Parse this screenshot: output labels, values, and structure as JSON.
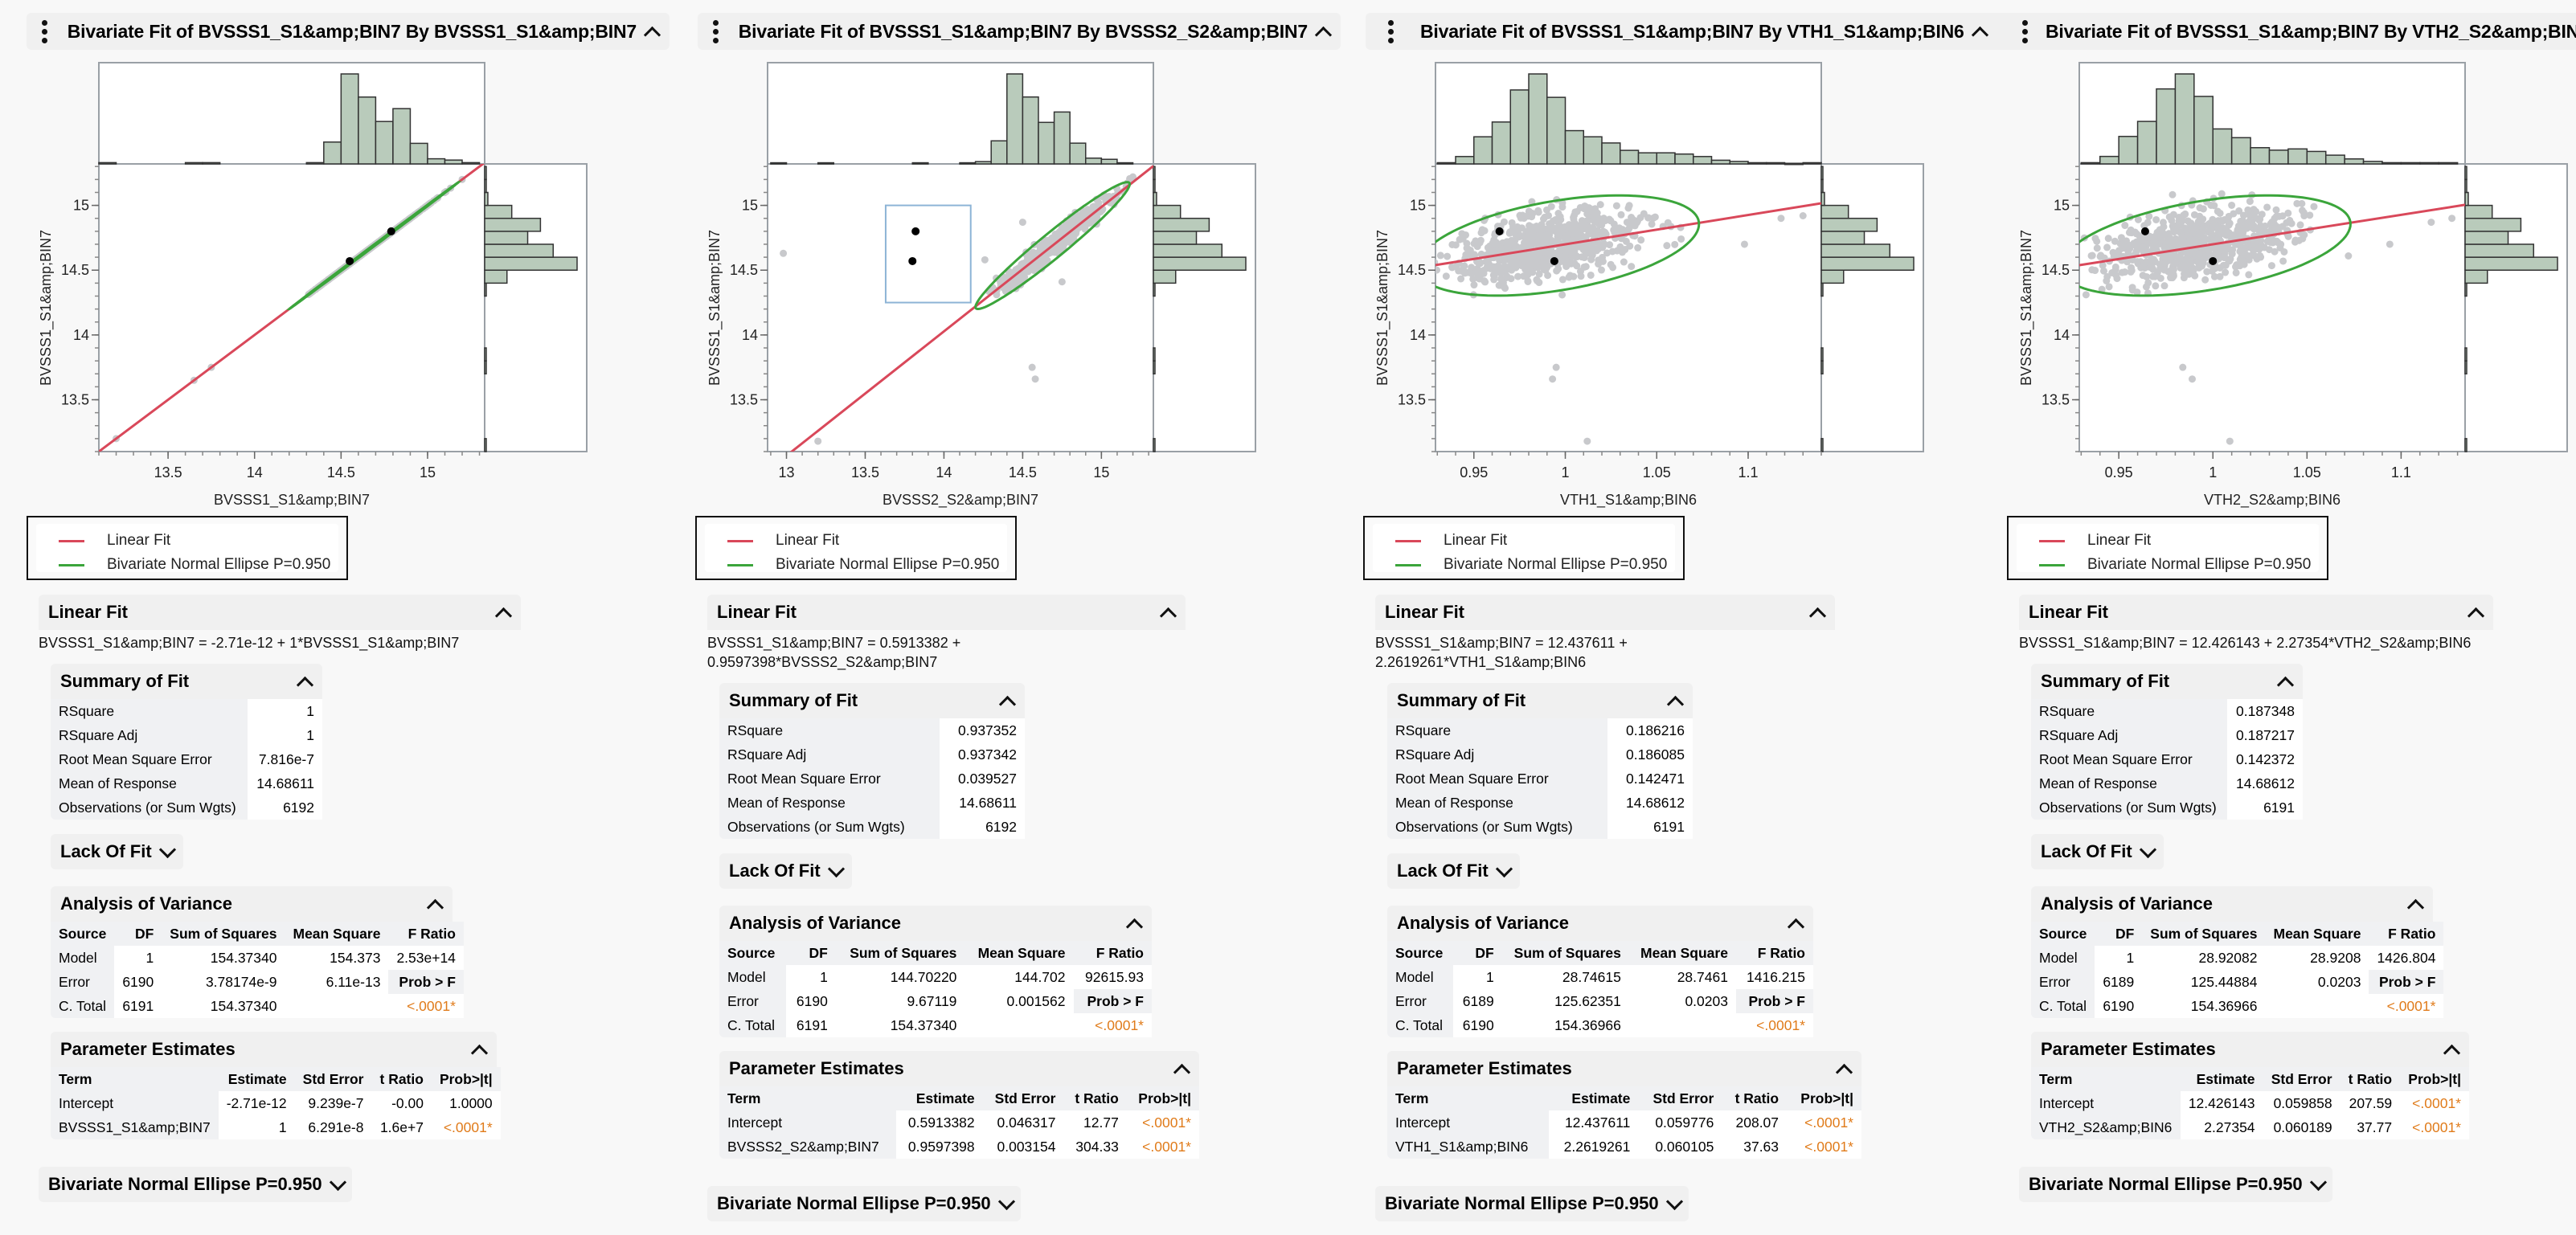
{
  "legend": {
    "items": [
      {
        "label": "Linear Fit",
        "color": "#d9485a"
      },
      {
        "label": "Bivariate Normal Ellipse P=0.950",
        "color": "#3ba53b"
      }
    ]
  },
  "colors": {
    "fit_line": "#d9485a",
    "ellipse": "#3ba53b",
    "points": "#c8c9cc",
    "selected_points": "#000000",
    "histogram_fill": "#b9cbbb",
    "histogram_stroke": "#333333",
    "significant": "#e07b1a"
  },
  "section_labels": {
    "linear_fit": "Linear Fit",
    "summary_of_fit": "Summary of Fit",
    "lack_of_fit": "Lack Of Fit",
    "anova": "Analysis of Variance",
    "parameter_estimates": "Parameter Estimates",
    "bivariate_ellipse": "Bivariate Normal Ellipse P=0.950"
  },
  "summary_labels": [
    "RSquare",
    "RSquare Adj",
    "Root Mean Square Error",
    "Mean of Response",
    "Observations (or Sum Wgts)"
  ],
  "anova_headers": [
    "Source",
    "DF",
    "Sum of Squares",
    "Mean Square",
    "F Ratio"
  ],
  "anova_sources": [
    "Model",
    "Error",
    "C. Total"
  ],
  "prob_f_label": "Prob > F",
  "param_headers": [
    "Term",
    "Estimate",
    "Std Error",
    "t Ratio",
    "Prob>|t|"
  ],
  "panels": [
    {
      "title": "Bivariate Fit of BVSSS1_S1&amp;BIN7 By BVSSS1_S1&amp;BIN7",
      "equation": [
        "BVSSS1_S1&amp;BIN7 = -2.71e-12 + 1*BVSSS1_S1&amp;BIN7"
      ],
      "summary": [
        "1",
        "1",
        "7.816e-7",
        "14.68611",
        "6192"
      ],
      "anova": {
        "df": [
          "1",
          "6190",
          "6191"
        ],
        "ss": [
          "154.37340",
          "3.78174e-9",
          "154.37340"
        ],
        "ms": [
          "154.373",
          "6.11e-13",
          ""
        ],
        "f_ratio": "2.53e+14",
        "prob_f": "<.0001*"
      },
      "params": [
        {
          "term": "Intercept",
          "estimate": "-2.71e-12",
          "std_error": "9.239e-7",
          "t_ratio": "-0.00",
          "prob": "1.0000",
          "sig": false
        },
        {
          "term": "BVSSS1_S1&amp;BIN7",
          "estimate": "1",
          "std_error": "6.291e-8",
          "t_ratio": "1.6e+7",
          "prob": "<.0001*",
          "sig": true
        }
      ]
    },
    {
      "title": "Bivariate Fit of BVSSS1_S1&amp;BIN7 By BVSSS2_S2&amp;BIN7",
      "equation": [
        "BVSSS1_S1&amp;BIN7 = 0.5913382 +",
        "0.9597398*BVSSS2_S2&amp;BIN7"
      ],
      "summary": [
        "0.937352",
        "0.937342",
        "0.039527",
        "14.68611",
        "6192"
      ],
      "anova": {
        "df": [
          "1",
          "6190",
          "6191"
        ],
        "ss": [
          "144.70220",
          "9.67119",
          "154.37340"
        ],
        "ms": [
          "144.702",
          "0.001562",
          ""
        ],
        "f_ratio": "92615.93",
        "prob_f": "<.0001*"
      },
      "params": [
        {
          "term": "Intercept",
          "estimate": "0.5913382",
          "std_error": "0.046317",
          "t_ratio": "12.77",
          "prob": "<.0001*",
          "sig": true
        },
        {
          "term": "BVSSS2_S2&amp;BIN7",
          "estimate": "0.9597398",
          "std_error": "0.003154",
          "t_ratio": "304.33",
          "prob": "<.0001*",
          "sig": true
        }
      ]
    },
    {
      "title": "Bivariate Fit of BVSSS1_S1&amp;BIN7 By VTH1_S1&amp;BIN6",
      "equation": [
        "BVSSS1_S1&amp;BIN7 = 12.437611 +",
        "2.2619261*VTH1_S1&amp;BIN6"
      ],
      "summary": [
        "0.186216",
        "0.186085",
        "0.142471",
        "14.68612",
        "6191"
      ],
      "anova": {
        "df": [
          "1",
          "6189",
          "6190"
        ],
        "ss": [
          "28.74615",
          "125.62351",
          "154.36966"
        ],
        "ms": [
          "28.7461",
          "0.0203",
          ""
        ],
        "f_ratio": "1416.215",
        "prob_f": "<.0001*"
      },
      "params": [
        {
          "term": "Intercept",
          "estimate": "12.437611",
          "std_error": "0.059776",
          "t_ratio": "208.07",
          "prob": "<.0001*",
          "sig": true
        },
        {
          "term": "VTH1_S1&amp;BIN6",
          "estimate": "2.2619261",
          "std_error": "0.060105",
          "t_ratio": "37.63",
          "prob": "<.0001*",
          "sig": true
        }
      ]
    },
    {
      "title": "Bivariate Fit of BVSSS1_S1&amp;BIN7 By VTH2_S2&amp;BIN6",
      "equation": [
        "BVSSS1_S1&amp;BIN7 = 12.426143 + 2.27354*VTH2_S2&amp;BIN6"
      ],
      "summary": [
        "0.187348",
        "0.187217",
        "0.142372",
        "14.68612",
        "6191"
      ],
      "anova": {
        "df": [
          "1",
          "6189",
          "6190"
        ],
        "ss": [
          "28.92082",
          "125.44884",
          "154.36966"
        ],
        "ms": [
          "28.9208",
          "0.0203",
          ""
        ],
        "f_ratio": "1426.804",
        "prob_f": "<.0001*"
      },
      "params": [
        {
          "term": "Intercept",
          "estimate": "12.426143",
          "std_error": "0.059858",
          "t_ratio": "207.59",
          "prob": "<.0001*",
          "sig": true
        },
        {
          "term": "VTH2_S2&amp;BIN6",
          "estimate": "2.27354",
          "std_error": "0.060189",
          "t_ratio": "37.77",
          "prob": "<.0001*",
          "sig": true
        }
      ]
    }
  ],
  "chart_data": [
    {
      "type": "scatter",
      "title": "Bivariate Fit of BVSSS1_S1&amp;BIN7 By BVSSS1_S1&amp;BIN7",
      "xlabel": "BVSSS1_S1&amp;BIN7",
      "ylabel": "BVSSS1_S1&amp;BIN7",
      "xlim": [
        13.1,
        15.33
      ],
      "ylim": [
        13.1,
        15.32
      ],
      "xticks": [
        13.5,
        14,
        14.5,
        15
      ],
      "yticks": [
        13.5,
        14,
        14.5,
        15
      ],
      "fit": {
        "intercept": 0,
        "slope": 1
      },
      "ellipse": {
        "cx": 14.69,
        "cy": 14.69,
        "sx": 0.2,
        "sy": 0.2,
        "rho": 0.9999
      },
      "cloud": {
        "cx": 14.69,
        "cy": 14.69,
        "sx": 0.18,
        "sy": 0.18,
        "rho": 1.0,
        "n": 500
      },
      "outliers": [
        [
          13.2,
          13.2
        ],
        [
          13.65,
          13.65
        ],
        [
          13.75,
          13.75
        ],
        [
          15.2,
          15.2
        ]
      ],
      "selected_points": [
        [
          14.55,
          14.57
        ],
        [
          14.79,
          14.8
        ]
      ],
      "x_histogram": {
        "bin_start": 13.1,
        "bin_width": 0.1,
        "counts": [
          1,
          0,
          0,
          0,
          0,
          1,
          1,
          0,
          0,
          0,
          0,
          0,
          1,
          17,
          70,
          52,
          33,
          43,
          16,
          4,
          3,
          1
        ]
      },
      "y_histogram": {
        "bin_start": 13.1,
        "bin_width": 0.1,
        "counts": [
          1,
          0,
          0,
          0,
          0,
          0,
          1,
          1,
          0,
          0,
          0,
          0,
          1,
          14,
          58,
          43,
          27,
          35,
          17,
          2,
          1,
          0.5
        ]
      }
    },
    {
      "type": "scatter",
      "title": "Bivariate Fit of BVSSS1_S1&amp;BIN7 By BVSSS2_S2&amp;BIN7",
      "xlabel": "BVSSS2_S2&amp;BIN7",
      "ylabel": "BVSSS1_S1&amp;BIN7",
      "xlim": [
        12.88,
        15.33
      ],
      "ylim": [
        13.1,
        15.32
      ],
      "xticks": [
        13,
        13.5,
        14,
        14.5,
        15
      ],
      "yticks": [
        13.5,
        14,
        14.5,
        15
      ],
      "fit": {
        "intercept": 0.5913382,
        "slope": 0.9597398
      },
      "ellipse": {
        "cx": 14.69,
        "cy": 14.69,
        "sx": 0.2,
        "sy": 0.2,
        "rho": 0.968
      },
      "cloud": {
        "cx": 14.69,
        "cy": 14.69,
        "sx": 0.18,
        "sy": 0.18,
        "rho": 0.975,
        "n": 500
      },
      "outliers": [
        [
          12.98,
          14.63
        ],
        [
          13.2,
          13.18
        ],
        [
          14.26,
          14.58
        ],
        [
          14.5,
          14.87
        ],
        [
          14.56,
          13.75
        ],
        [
          14.58,
          13.66
        ],
        [
          14.75,
          14.41
        ],
        [
          15.2,
          15.22
        ]
      ],
      "selected_points": [
        [
          13.82,
          14.8
        ],
        [
          13.8,
          14.57
        ]
      ],
      "selection_box": {
        "x": [
          13.63,
          14.17
        ],
        "y": [
          14.25,
          15.0
        ]
      },
      "x_histogram": {
        "bin_start": 12.9,
        "bin_width": 0.1,
        "counts": [
          1,
          0,
          0,
          1,
          0,
          0,
          0,
          0,
          0,
          1,
          0,
          0,
          1,
          2,
          20,
          78,
          58,
          36,
          45,
          18,
          5,
          4,
          1
        ]
      },
      "y_histogram": {
        "bin_start": 13.1,
        "bin_width": 0.1,
        "counts": [
          1,
          0,
          0,
          0,
          0,
          0,
          1,
          1,
          0,
          0,
          0,
          0,
          1,
          14,
          58,
          43,
          27,
          35,
          17,
          2,
          1,
          0.5
        ]
      }
    },
    {
      "type": "scatter",
      "title": "Bivariate Fit of BVSSS1_S1&amp;BIN7 By VTH1_S1&amp;BIN6",
      "xlabel": "VTH1_S1&amp;BIN6",
      "ylabel": "BVSSS1_S1&amp;BIN7",
      "xlim": [
        0.929,
        1.14
      ],
      "ylim": [
        13.1,
        15.32
      ],
      "xticks": [
        0.95,
        1,
        1.05,
        1.1
      ],
      "yticks": [
        13.5,
        14,
        14.5,
        15
      ],
      "fit": {
        "intercept": 12.437611,
        "slope": 2.2619261
      },
      "ellipse": {
        "cx": 0.996,
        "cy": 14.69,
        "sx": 0.0315,
        "sy": 0.158,
        "rho": 0.43
      },
      "cloud": {
        "cx": 0.99,
        "cy": 14.69,
        "sx": 0.025,
        "sy": 0.14,
        "rho": 0.43,
        "n": 700
      },
      "outliers": [
        [
          0.993,
          13.66
        ],
        [
          0.995,
          13.75
        ],
        [
          1.012,
          13.18
        ],
        [
          1.098,
          14.7
        ],
        [
          1.13,
          14.92
        ],
        [
          1.118,
          14.9
        ]
      ],
      "selected_points": [
        [
          0.964,
          14.8
        ],
        [
          0.994,
          14.57
        ]
      ],
      "x_histogram": {
        "bin_start": 0.93,
        "bin_width": 0.01,
        "counts": [
          1,
          6,
          22,
          34,
          60,
          73,
          54,
          27,
          22,
          17,
          11,
          9,
          9,
          8,
          6,
          3,
          2,
          1,
          1,
          0.5,
          1
        ]
      },
      "y_histogram": {
        "bin_start": 13.1,
        "bin_width": 0.1,
        "counts": [
          1,
          0,
          0,
          0,
          0,
          0,
          1,
          1,
          0,
          0,
          0,
          0,
          1,
          14,
          58,
          43,
          27,
          35,
          17,
          2,
          1,
          0.5
        ]
      }
    },
    {
      "type": "scatter",
      "title": "Bivariate Fit of BVSSS1_S1&amp;BIN7 By VTH2_S2&amp;BIN6",
      "xlabel": "VTH2_S2&amp;BIN6",
      "ylabel": "BVSSS1_S1&amp;BIN7",
      "xlim": [
        0.929,
        1.134
      ],
      "ylim": [
        13.1,
        15.32
      ],
      "xticks": [
        0.95,
        1,
        1.05,
        1.1
      ],
      "yticks": [
        13.5,
        14,
        14.5,
        15
      ],
      "fit": {
        "intercept": 12.426143,
        "slope": 2.27354
      },
      "ellipse": {
        "cx": 0.996,
        "cy": 14.69,
        "sx": 0.0315,
        "sy": 0.158,
        "rho": 0.43
      },
      "cloud": {
        "cx": 0.99,
        "cy": 14.69,
        "sx": 0.025,
        "sy": 0.14,
        "rho": 0.43,
        "n": 700
      },
      "outliers": [
        [
          0.984,
          13.75
        ],
        [
          0.989,
          13.66
        ],
        [
          1.009,
          13.18
        ],
        [
          1.072,
          14.61
        ],
        [
          1.094,
          14.7
        ],
        [
          1.116,
          14.87
        ],
        [
          1.127,
          14.9
        ]
      ],
      "selected_points": [
        [
          0.964,
          14.8
        ],
        [
          1.0,
          14.57
        ]
      ],
      "x_histogram": {
        "bin_start": 0.93,
        "bin_width": 0.01,
        "counts": [
          1,
          6,
          22,
          34,
          60,
          72,
          54,
          28,
          21,
          13,
          11,
          12,
          10,
          7,
          4,
          2,
          1,
          1,
          1,
          1
        ]
      },
      "y_histogram": {
        "bin_start": 13.1,
        "bin_width": 0.1,
        "counts": [
          1,
          0,
          0,
          0,
          0,
          0,
          1,
          1,
          0,
          0,
          0,
          0,
          1,
          14,
          58,
          43,
          27,
          35,
          17,
          2,
          1,
          0.5
        ]
      }
    }
  ]
}
